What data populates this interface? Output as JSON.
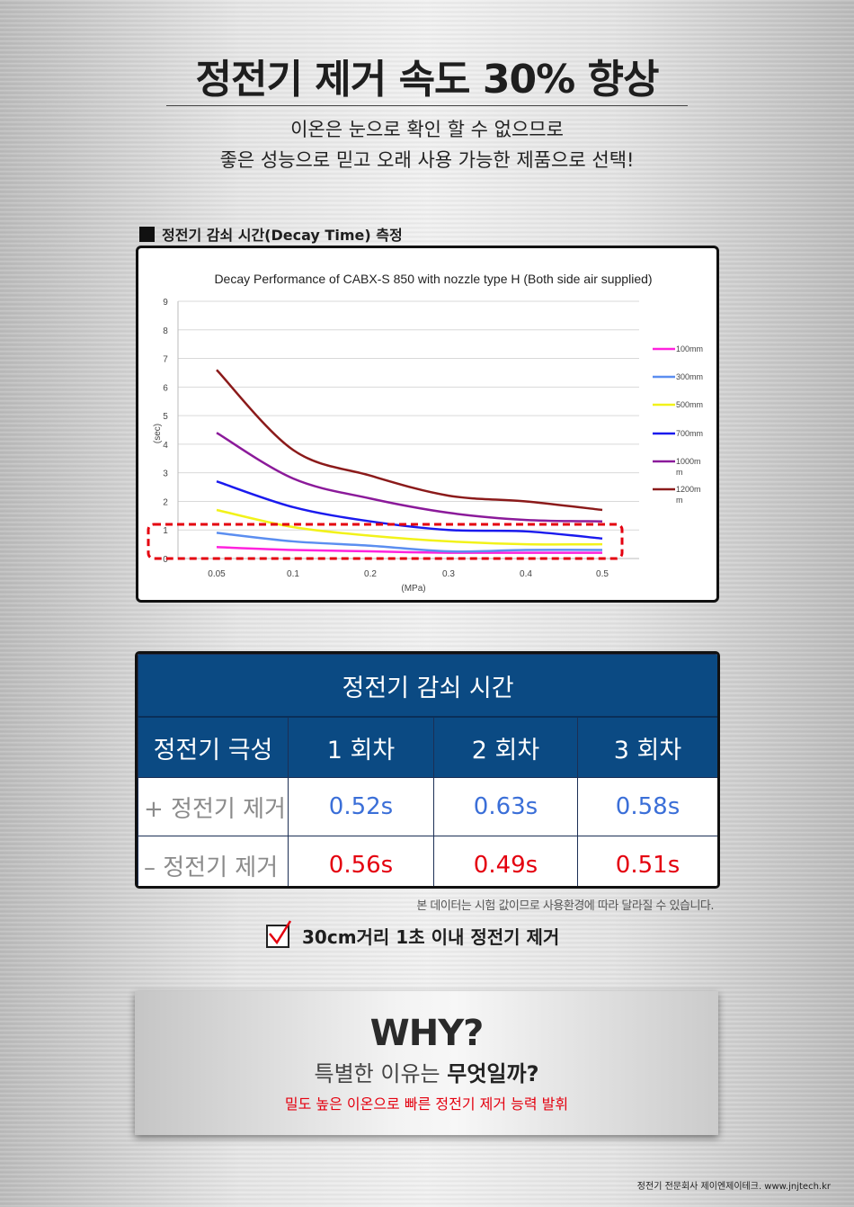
{
  "header": {
    "title": "정전기 제거 속도 30% 향상",
    "subtitle_line1": "이온은 눈으로 확인 할 수 없으므로",
    "subtitle_line2": "좋은 성능으로 믿고 오래 사용 가능한 제품으로 선택!"
  },
  "section": {
    "label": "정전기 감쇠 시간(Decay Time) 측정"
  },
  "chart_data": {
    "type": "line",
    "title": "Decay Performance of CABX-S 850 with nozzle type H (Both side air supplied)",
    "xlabel": "(MPa)",
    "ylabel": "(sec)",
    "x": [
      "0.05",
      "0.1",
      "0.2",
      "0.3",
      "0.4",
      "0.5"
    ],
    "yticks": [
      "0",
      "1",
      "2",
      "3",
      "4",
      "5",
      "6",
      "7",
      "8",
      "9"
    ],
    "ylim": [
      0,
      9
    ],
    "grid": true,
    "legend_position": "right",
    "highlight_band": [
      0,
      1
    ],
    "series": [
      {
        "name": "100mm",
        "color": "#ff22dd",
        "values": [
          0.4,
          0.3,
          0.25,
          0.2,
          0.2,
          0.2
        ]
      },
      {
        "name": "300mm",
        "color": "#5b8ef0",
        "values": [
          0.9,
          0.6,
          0.45,
          0.25,
          0.3,
          0.3
        ]
      },
      {
        "name": "500mm",
        "color": "#f2f21a",
        "values": [
          1.7,
          1.1,
          0.8,
          0.6,
          0.5,
          0.5
        ]
      },
      {
        "name": "700mm",
        "color": "#1a1aee",
        "values": [
          2.7,
          1.8,
          1.3,
          1.0,
          0.95,
          0.7
        ]
      },
      {
        "name": "1000mm",
        "color": "#8b1a9a",
        "values": [
          4.4,
          2.8,
          2.1,
          1.6,
          1.35,
          1.3
        ]
      },
      {
        "name": "1200mm",
        "color": "#8b1a1a",
        "values": [
          6.6,
          3.8,
          2.9,
          2.2,
          2.0,
          1.7
        ]
      }
    ]
  },
  "table": {
    "title": "정전기 감쇠 시간",
    "headers": [
      "정전기 극성",
      "1 회차",
      "2 회차",
      "3 회차"
    ],
    "rows": [
      {
        "label": "+ 정전기 제거",
        "values": [
          "0.52s",
          "0.63s",
          "0.58s"
        ]
      },
      {
        "label": "– 정전기 제거",
        "values": [
          "0.56s",
          "0.49s",
          "0.51s"
        ]
      }
    ]
  },
  "note": "본 데이터는 시험 값이므로 사용환경에 따라 달라질 수 있습니다.",
  "check": {
    "text": "30cm거리 1초 이내 정전기 제거"
  },
  "why": {
    "title": "WHY?",
    "sub_normal": "특별한 이유는 ",
    "sub_bold": "무엇일까?",
    "desc": "밀도 높은 이온으로 빠른 정전기 제거 능력 발휘"
  },
  "footer": "정전기 전문회사  제이엔제이테크. www.jnjtech.kr",
  "colors": {
    "table_header": "#0b4a83",
    "plus_values": "#3b6fd8",
    "minus_values": "#e4000f",
    "highlight": "#e4000f"
  },
  "icons": {
    "section_bullet": "black-square-icon",
    "check": "checkbox-check-icon"
  }
}
